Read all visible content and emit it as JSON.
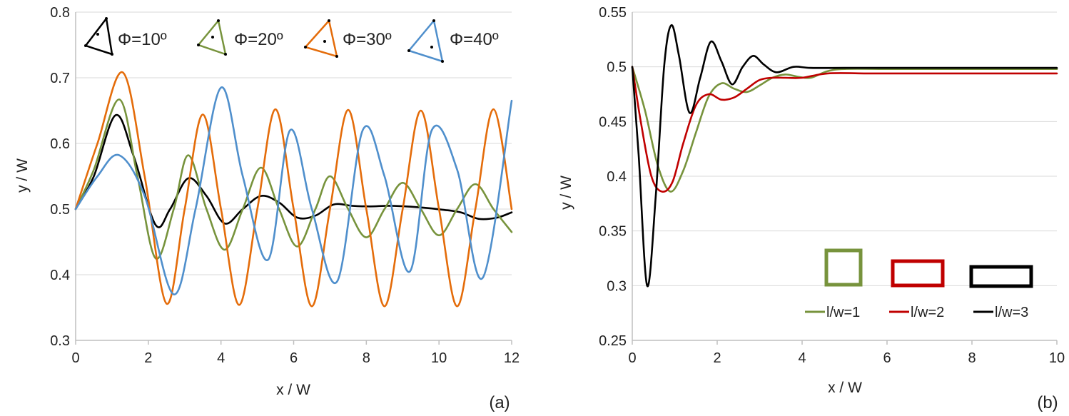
{
  "chart_data": [
    {
      "id": "a",
      "type": "line",
      "panel_label": "(a)",
      "xlabel": "x / W",
      "ylabel": "y / W",
      "xlim": [
        0,
        12
      ],
      "ylim": [
        0.3,
        0.8
      ],
      "xticks": [
        0,
        2,
        4,
        6,
        8,
        10,
        12
      ],
      "yticks": [
        0.3,
        0.4,
        0.5,
        0.6,
        0.7,
        0.8
      ],
      "xtick_labels": [
        "0",
        "2",
        "4",
        "6",
        "8",
        "10",
        "12"
      ],
      "ytick_labels": [
        "0.3",
        "0.4",
        "0.5",
        "0.6",
        "0.7",
        "0.8"
      ],
      "legend_position": "top",
      "series": [
        {
          "name": "Φ=10º",
          "color": "#000000",
          "x": [
            0,
            0.5,
            1.1,
            1.6,
            2.2,
            2.6,
            3.1,
            3.6,
            4.1,
            4.6,
            5.1,
            5.6,
            6.1,
            6.6,
            7.1,
            7.6,
            8.1,
            8.6,
            9.1,
            9.6,
            10.1,
            10.6,
            11.1,
            11.6,
            12
          ],
          "y": [
            0.5,
            0.55,
            0.643,
            0.58,
            0.476,
            0.5,
            0.547,
            0.52,
            0.478,
            0.5,
            0.52,
            0.51,
            0.487,
            0.49,
            0.507,
            0.505,
            0.504,
            0.505,
            0.504,
            0.502,
            0.499,
            0.495,
            0.485,
            0.487,
            0.495
          ]
        },
        {
          "name": "Φ=20º",
          "color": "#77933C",
          "x": [
            0,
            0.5,
            1.2,
            1.7,
            2.2,
            2.7,
            3.1,
            3.6,
            4.1,
            4.6,
            5.1,
            5.6,
            6.1,
            6.6,
            7.0,
            7.5,
            8.0,
            8.5,
            9.0,
            9.5,
            10.0,
            10.5,
            11.0,
            11.5,
            12
          ],
          "y": [
            0.5,
            0.56,
            0.667,
            0.55,
            0.425,
            0.5,
            0.582,
            0.5,
            0.438,
            0.5,
            0.563,
            0.5,
            0.443,
            0.5,
            0.55,
            0.5,
            0.457,
            0.5,
            0.54,
            0.5,
            0.46,
            0.5,
            0.538,
            0.5,
            0.465
          ]
        },
        {
          "name": "Φ=30º",
          "color": "#E46C0A",
          "x": [
            0,
            0.6,
            1.3,
            1.9,
            2.5,
            3.0,
            3.5,
            4.0,
            4.5,
            5.0,
            5.5,
            6.0,
            6.5,
            7.0,
            7.5,
            8.0,
            8.5,
            9.0,
            9.5,
            10.0,
            10.5,
            11.0,
            11.5,
            12
          ],
          "y": [
            0.5,
            0.6,
            0.708,
            0.55,
            0.356,
            0.5,
            0.644,
            0.5,
            0.354,
            0.5,
            0.652,
            0.5,
            0.352,
            0.5,
            0.651,
            0.5,
            0.352,
            0.5,
            0.65,
            0.5,
            0.352,
            0.5,
            0.652,
            0.5
          ]
        },
        {
          "name": "Φ=40º",
          "color": "#4F8FCC",
          "x": [
            0,
            0.6,
            1.2,
            1.9,
            2.7,
            3.3,
            4.0,
            4.6,
            5.3,
            5.9,
            6.5,
            7.2,
            7.9,
            8.5,
            9.2,
            9.8,
            10.5,
            11.2,
            12
          ],
          "y": [
            0.5,
            0.55,
            0.582,
            0.52,
            0.37,
            0.5,
            0.685,
            0.55,
            0.423,
            0.62,
            0.5,
            0.39,
            0.62,
            0.55,
            0.405,
            0.62,
            0.56,
            0.395,
            0.665
          ]
        }
      ]
    },
    {
      "id": "b",
      "type": "line",
      "panel_label": "(b)",
      "xlabel": "x / W",
      "ylabel": "y / W",
      "xlim": [
        0,
        10
      ],
      "ylim": [
        0.25,
        0.55
      ],
      "xticks": [
        0,
        2,
        4,
        6,
        8,
        10
      ],
      "yticks": [
        0.25,
        0.3,
        0.35,
        0.4,
        0.45,
        0.5,
        0.55
      ],
      "xtick_labels": [
        "0",
        "2",
        "4",
        "6",
        "8",
        "10"
      ],
      "ytick_labels": [
        "0.25",
        "0.3",
        "0.35",
        "0.4",
        "0.45",
        "0.5",
        "0.55"
      ],
      "legend_position": "bottom-right",
      "series": [
        {
          "name": "l/w=1",
          "color": "#77933C",
          "x": [
            0,
            0.3,
            0.6,
            0.9,
            1.2,
            1.5,
            1.8,
            2.1,
            2.4,
            2.7,
            3.0,
            3.3,
            3.6,
            3.9,
            4.2,
            4.6,
            5.0,
            6,
            7,
            8,
            9,
            10
          ],
          "y": [
            0.5,
            0.46,
            0.41,
            0.386,
            0.405,
            0.44,
            0.473,
            0.485,
            0.48,
            0.477,
            0.483,
            0.49,
            0.493,
            0.491,
            0.49,
            0.496,
            0.498,
            0.498,
            0.498,
            0.498,
            0.498,
            0.498
          ]
        },
        {
          "name": "l/w=2",
          "color": "#C00000",
          "x": [
            0,
            0.2,
            0.45,
            0.7,
            0.95,
            1.2,
            1.5,
            1.8,
            2.1,
            2.4,
            2.7,
            3.0,
            3.3,
            3.6,
            4.0,
            4.6,
            5.5,
            6,
            7,
            8,
            9,
            10
          ],
          "y": [
            0.5,
            0.45,
            0.4,
            0.386,
            0.395,
            0.43,
            0.465,
            0.475,
            0.47,
            0.472,
            0.48,
            0.488,
            0.49,
            0.49,
            0.49,
            0.494,
            0.494,
            0.494,
            0.494,
            0.494,
            0.494,
            0.494
          ]
        },
        {
          "name": "l/w=3",
          "color": "#000000",
          "x": [
            0,
            0.15,
            0.35,
            0.55,
            0.75,
            0.92,
            1.1,
            1.35,
            1.6,
            1.85,
            2.1,
            2.35,
            2.6,
            2.85,
            3.1,
            3.4,
            3.8,
            4.2,
            5,
            6,
            7,
            8,
            9,
            10
          ],
          "y": [
            0.5,
            0.42,
            0.3,
            0.38,
            0.5,
            0.538,
            0.51,
            0.458,
            0.49,
            0.523,
            0.505,
            0.484,
            0.5,
            0.51,
            0.502,
            0.495,
            0.5,
            0.499,
            0.499,
            0.499,
            0.499,
            0.499,
            0.499,
            0.499
          ]
        }
      ]
    }
  ]
}
